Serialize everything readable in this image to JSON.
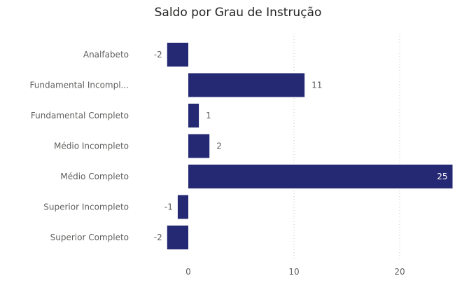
{
  "chart_data": {
    "type": "bar",
    "orientation": "horizontal",
    "title": "Saldo por Grau de Instrução",
    "categories": [
      "Analfabeto",
      "Fundamental Incompl...",
      "Fundamental Completo",
      "Médio Incompleto",
      "Médio Completo",
      "Superior Incompleto",
      "Superior Completo"
    ],
    "values": [
      -2,
      11,
      1,
      2,
      25,
      -1,
      -2
    ],
    "xlim": [
      -2.2,
      25
    ],
    "xticks": [
      "0",
      "10",
      "20"
    ],
    "grid": true,
    "bar_color": "#252872"
  }
}
